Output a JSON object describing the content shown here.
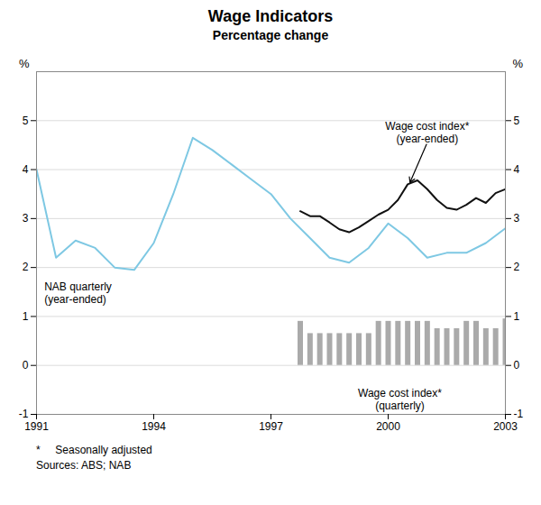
{
  "chart_data": {
    "type": "line",
    "title": "Wage Indicators",
    "subtitle": "Percentage change",
    "ylabel": "%",
    "y2label": "%",
    "xlim": [
      1991.0,
      2003.0
    ],
    "xticks": [
      1991,
      1994,
      1997,
      2000,
      2003
    ],
    "ylim": [
      -1,
      6
    ],
    "yticks": [
      -1,
      0,
      1,
      2,
      3,
      4,
      5
    ],
    "y2lim": [
      -1,
      6
    ],
    "y2ticks": [
      -1,
      0,
      1,
      2,
      3,
      4,
      5
    ],
    "grid": true,
    "series": [
      {
        "name": "NAB quarterly\n(year-ended)",
        "type": "line",
        "color": "#7ec8e3",
        "x": [
          1991.0,
          1991.5,
          1992.0,
          1992.5,
          1993.0,
          1993.5,
          1994.0,
          1994.5,
          1995.0,
          1995.5,
          1996.0,
          1996.5,
          1997.0,
          1997.5,
          1998.0,
          1998.5,
          1999.0,
          1999.5,
          2000.0,
          2000.5,
          2001.0,
          2001.5,
          2002.0,
          2002.5,
          2003.0
        ],
        "values": [
          4.0,
          2.2,
          2.55,
          2.4,
          2.0,
          1.95,
          2.5,
          3.5,
          4.65,
          4.4,
          4.1,
          3.8,
          3.5,
          3.0,
          2.6,
          2.2,
          2.1,
          2.4,
          2.9,
          2.6,
          2.2,
          2.3,
          2.3,
          2.5,
          2.8
        ],
        "label": [
          1991.2,
          1.72
        ]
      },
      {
        "name": "Wage cost index*\n(year-ended)",
        "type": "line",
        "color": "#111111",
        "x": [
          1997.75,
          1998.0,
          1998.25,
          1998.5,
          1998.75,
          1999.0,
          1999.25,
          1999.5,
          1999.75,
          2000.0,
          2000.25,
          2000.5,
          2000.75,
          2001.0,
          2001.25,
          2001.5,
          2001.75,
          2002.0,
          2002.25,
          2002.5,
          2002.75,
          2003.0
        ],
        "values": [
          3.15,
          3.05,
          3.05,
          2.92,
          2.78,
          2.72,
          2.82,
          2.95,
          3.08,
          3.18,
          3.38,
          3.7,
          3.78,
          3.6,
          3.38,
          3.22,
          3.18,
          3.28,
          3.42,
          3.32,
          3.52,
          3.6
        ],
        "label": [
          2001.0,
          4.55
        ],
        "arrow": [
          2000.55,
          3.72
        ]
      },
      {
        "name": "Wage cost index*\n(quarterly)",
        "type": "bar",
        "color": "#aaaaaa",
        "x": [
          1997.75,
          1998.0,
          1998.25,
          1998.5,
          1998.75,
          1999.0,
          1999.25,
          1999.5,
          1999.75,
          2000.0,
          2000.25,
          2000.5,
          2000.75,
          2001.0,
          2001.25,
          2001.5,
          2001.75,
          2002.0,
          2002.25,
          2002.5,
          2002.75,
          2003.0
        ],
        "values": [
          0.9,
          0.65,
          0.65,
          0.65,
          0.65,
          0.65,
          0.65,
          0.65,
          0.9,
          0.9,
          0.9,
          0.9,
          0.9,
          0.9,
          0.75,
          0.75,
          0.75,
          0.9,
          0.9,
          0.75,
          0.75,
          0.95
        ],
        "label": [
          2000.3,
          -0.45
        ]
      }
    ],
    "footnotes": [
      "*     Seasonally adjusted",
      "Sources: ABS; NAB"
    ]
  }
}
